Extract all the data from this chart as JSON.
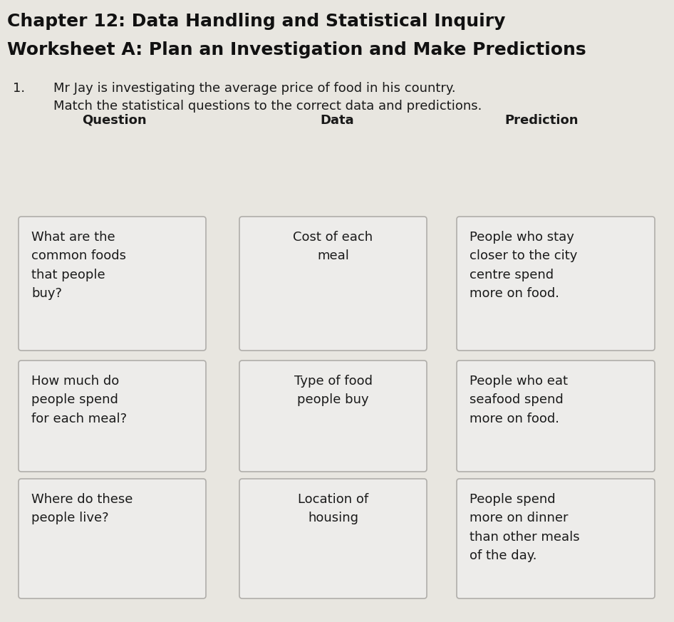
{
  "title_line1": "Chapter 12: Data Handling and Statistical Inquiry",
  "title_line2": "Worksheet A: Plan an Investigation and Make Predictions",
  "question_number": "1.",
  "instruction_line1": "Mr Jay is investigating the average price of food in his country.",
  "instruction_line2": "Match the statistical questions to the correct data and predictions.",
  "col_headers": [
    "Question",
    "Data",
    "Prediction"
  ],
  "background_color": "#e8e6e0",
  "box_facecolor": "#edecea",
  "box_edgecolor": "#b0aeaa",
  "text_color": "#1a1a1a",
  "title_color": "#111111",
  "title_fontsize": 18,
  "header_fontsize": 13,
  "body_fontsize": 13,
  "instruction_fontsize": 13,
  "rows": [
    {
      "q_text": "What are the\ncommon foods\nthat people\nbuy?",
      "d_text": "Cost of each\nmeal",
      "p_text": "People who stay\ncloser to the city\ncentre spend\nmore on food."
    },
    {
      "q_text": "How much do\npeople spend\nfor each meal?",
      "d_text": "Type of food\npeople buy",
      "p_text": "People who eat\nseafood spend\nmore on food."
    },
    {
      "q_text": "Where do these\npeople live?",
      "d_text": "Location of\nhousing",
      "p_text": "People spend\nmore on dinner\nthan other meals\nof the day."
    }
  ]
}
